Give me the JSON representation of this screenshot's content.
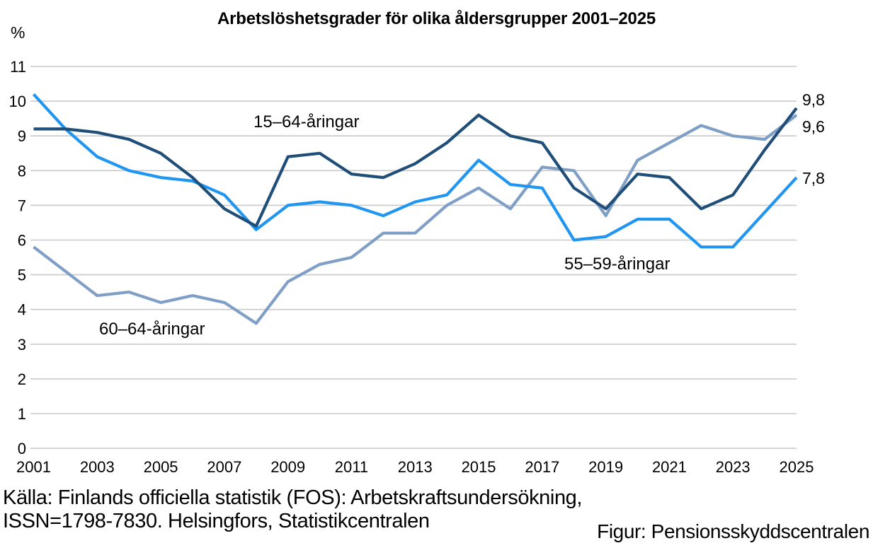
{
  "chart_data": {
    "type": "line",
    "title": "Arbetslöshetsgrader för olika åldersgrupper 2001–2025",
    "ylabel": "%",
    "x": [
      2001,
      2002,
      2003,
      2004,
      2005,
      2006,
      2007,
      2008,
      2009,
      2010,
      2011,
      2012,
      2013,
      2014,
      2015,
      2016,
      2017,
      2018,
      2019,
      2020,
      2021,
      2022,
      2023,
      2024,
      2025
    ],
    "x_tick_years": [
      2001,
      2003,
      2005,
      2007,
      2009,
      2011,
      2013,
      2015,
      2017,
      2019,
      2021,
      2023,
      2025
    ],
    "ylim": [
      0,
      11
    ],
    "y_ticks": [
      0,
      1,
      2,
      3,
      4,
      5,
      6,
      7,
      8,
      9,
      10,
      11
    ],
    "grid": "horizontal",
    "legend_position": "inline-labels",
    "gridline_color": "#C9C9C9",
    "text_color": "#000000",
    "series": [
      {
        "name": "15-64",
        "label": "15–64-åringar",
        "color": "#1F4E79",
        "end_label": "9,8",
        "values": [
          9.2,
          9.2,
          9.1,
          8.9,
          8.5,
          7.8,
          6.9,
          6.4,
          8.4,
          8.5,
          7.9,
          7.8,
          8.2,
          8.8,
          9.6,
          9.0,
          8.8,
          7.5,
          6.9,
          7.9,
          7.8,
          6.9,
          7.3,
          8.6,
          9.8
        ]
      },
      {
        "name": "55-59",
        "label": "55–59-åringar",
        "color": "#2196F0",
        "end_label": "7,8",
        "values": [
          10.2,
          9.2,
          8.4,
          8.0,
          7.8,
          7.7,
          7.3,
          6.3,
          7.0,
          7.1,
          7.0,
          6.7,
          7.1,
          7.3,
          8.3,
          7.6,
          7.5,
          6.0,
          6.1,
          6.6,
          6.6,
          5.8,
          5.8,
          6.8,
          7.8
        ]
      },
      {
        "name": "60-64",
        "label": "60–64-åringar",
        "color": "#7F9FC6",
        "end_label": "9,6",
        "values": [
          5.8,
          5.1,
          4.4,
          4.5,
          4.2,
          4.4,
          4.2,
          3.6,
          4.8,
          5.3,
          5.5,
          6.2,
          6.2,
          7.0,
          7.5,
          6.9,
          8.1,
          8.0,
          6.7,
          8.3,
          8.8,
          9.3,
          9.0,
          8.9,
          9.6
        ]
      }
    ],
    "footer": {
      "source_line1": "Källa: Finlands officiella statistik (FOS): Arbetskraftsundersökning,",
      "source_line2": "ISSN=1798-7830. Helsingfors, Statistikcentralen",
      "credit": "Figur: Pensionsskyddscentralen"
    }
  }
}
